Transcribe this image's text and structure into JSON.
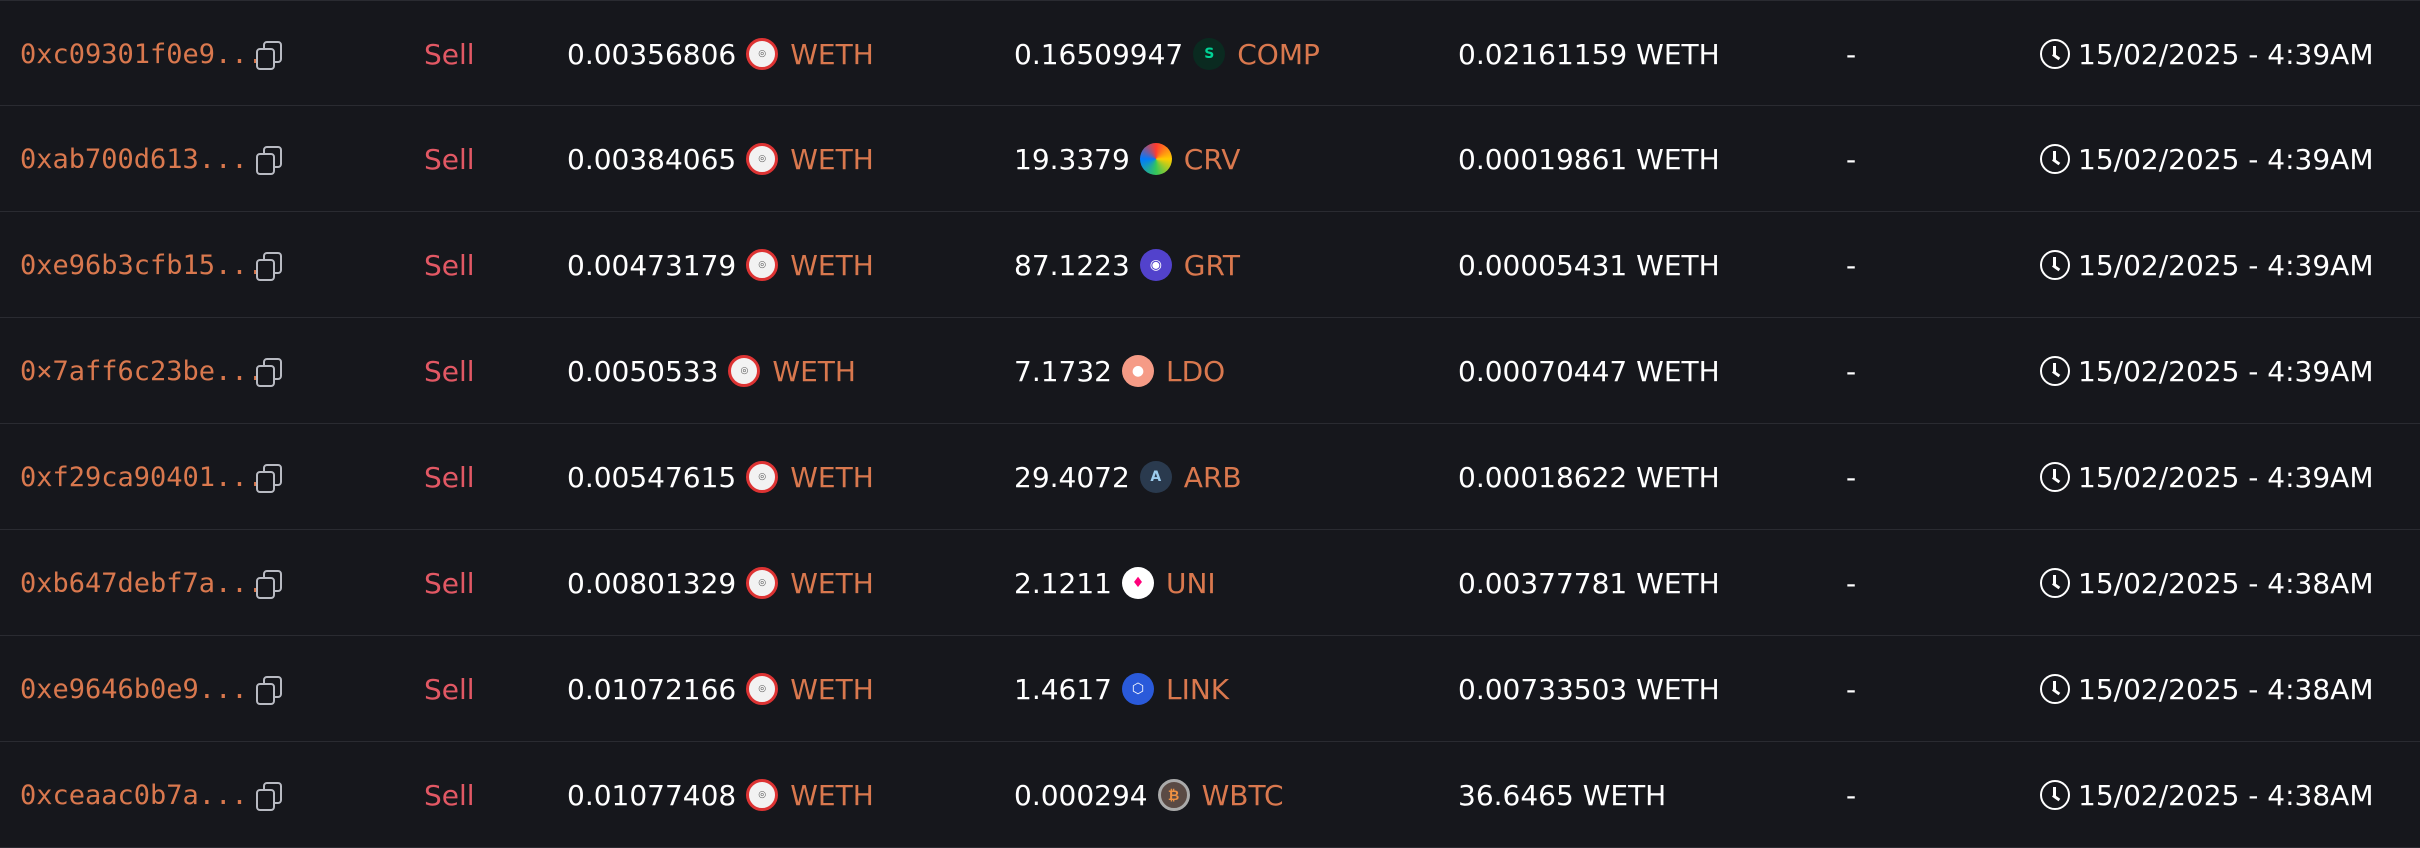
{
  "rows": [
    {
      "hash": "0xc09301f0e9...",
      "type": "Sell",
      "from_amount": "0.00356806",
      "from_token": "WETH",
      "from_icon": "weth-icon",
      "to_amount": "0.16509947",
      "to_token": "COMP",
      "to_icon": "comp-icon",
      "price": "0.02161159 WETH",
      "extra": "-",
      "time": "15/02/2025 - 4:39AM"
    },
    {
      "hash": "0xab700d613...",
      "type": "Sell",
      "from_amount": "0.00384065",
      "from_token": "WETH",
      "from_icon": "weth-icon",
      "to_amount": "19.3379",
      "to_token": "CRV",
      "to_icon": "crv-icon",
      "price": "0.00019861 WETH",
      "extra": "-",
      "time": "15/02/2025 - 4:39AM"
    },
    {
      "hash": "0xe96b3cfb15...",
      "type": "Sell",
      "from_amount": "0.00473179",
      "from_token": "WETH",
      "from_icon": "weth-icon",
      "to_amount": "87.1223",
      "to_token": "GRT",
      "to_icon": "grt-icon",
      "price": "0.00005431 WETH",
      "extra": "-",
      "time": "15/02/2025 - 4:39AM"
    },
    {
      "hash": "0×7aff6c23be...",
      "type": "Sell",
      "from_amount": "0.0050533",
      "from_token": "WETH",
      "from_icon": "weth-icon",
      "to_amount": "7.1732",
      "to_token": "LDO",
      "to_icon": "ldo-icon",
      "price": "0.00070447 WETH",
      "extra": "-",
      "time": "15/02/2025 - 4:39AM"
    },
    {
      "hash": "0xf29ca90401...",
      "type": "Sell",
      "from_amount": "0.00547615",
      "from_token": "WETH",
      "from_icon": "weth-icon",
      "to_amount": "29.4072",
      "to_token": "ARB",
      "to_icon": "arb-icon",
      "price": "0.00018622 WETH",
      "extra": "-",
      "time": "15/02/2025 - 4:39AM"
    },
    {
      "hash": "0xb647debf7a...",
      "type": "Sell",
      "from_amount": "0.00801329",
      "from_token": "WETH",
      "from_icon": "weth-icon",
      "to_amount": "2.1211",
      "to_token": "UNI",
      "to_icon": "uni-icon",
      "price": "0.00377781 WETH",
      "extra": "-",
      "time": "15/02/2025 - 4:38AM"
    },
    {
      "hash": "0xe9646b0e9...",
      "type": "Sell",
      "from_amount": "0.01072166",
      "from_token": "WETH",
      "from_icon": "weth-icon",
      "to_amount": "1.4617",
      "to_token": "LINK",
      "to_icon": "link-icon",
      "price": "0.00733503 WETH",
      "extra": "-",
      "time": "15/02/2025 - 4:38AM"
    },
    {
      "hash": "0xceaac0b7a...",
      "type": "Sell",
      "from_amount": "0.01077408",
      "from_token": "WETH",
      "from_icon": "weth-icon",
      "to_amount": "0.000294",
      "to_token": "WBTC",
      "to_icon": "wbtc-icon",
      "price": "36.6465 WETH",
      "extra": "-",
      "time": "15/02/2025 - 4:38AM"
    }
  ],
  "icons": {
    "copy": "copy-icon",
    "clock": "clock-icon"
  },
  "colors": {
    "background": "#16171c",
    "hash": "#d9784e",
    "sell": "#e25864",
    "token": "#d9784e",
    "text": "#ffffff",
    "divider": "#2a2b31"
  }
}
